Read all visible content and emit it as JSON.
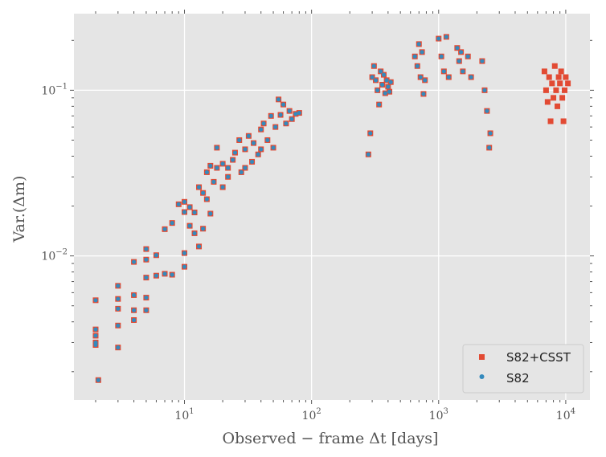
{
  "chart_data": {
    "type": "scatter",
    "xlabel": "Observed − frame Δt [days]",
    "ylabel": "Var.(Δm)",
    "xscale": "log",
    "yscale": "log",
    "xlim": [
      1.35,
      15500
    ],
    "ylim": [
      0.00135,
      0.29
    ],
    "x_ticks": [
      {
        "value": 10,
        "base": "10",
        "exp": "1"
      },
      {
        "value": 100,
        "base": "10",
        "exp": "2"
      },
      {
        "value": 1000,
        "base": "10",
        "exp": "3"
      },
      {
        "value": 10000,
        "base": "10",
        "exp": "4"
      }
    ],
    "y_ticks": [
      {
        "value": 0.01,
        "base": "10",
        "exp": "−2"
      },
      {
        "value": 0.1,
        "base": "10",
        "exp": "−1"
      }
    ],
    "grid": true,
    "legend_position": "bottom-right",
    "colors": {
      "background": "#e5e5e5",
      "grid": "#ffffff",
      "s82_csst": "#e24a33",
      "s82": "#348abd"
    },
    "series": [
      {
        "name": "S82+CSST",
        "marker": "square",
        "color": "#e24a33",
        "x": [
          2,
          2,
          2,
          2,
          2,
          2.1,
          3,
          3,
          3,
          3,
          3,
          4,
          4,
          4,
          4,
          5,
          5,
          5,
          5,
          5,
          6,
          6,
          7,
          7,
          8,
          8,
          9,
          10,
          10,
          10,
          10,
          11,
          11,
          12,
          12,
          13,
          13,
          14,
          14,
          15,
          15,
          16,
          16,
          17,
          18,
          18,
          20,
          20,
          22,
          22,
          24,
          25,
          27,
          28,
          30,
          30,
          32,
          34,
          35,
          38,
          40,
          40,
          42,
          45,
          48,
          50,
          52,
          55,
          57,
          60,
          63,
          67,
          70,
          75,
          80,
          280,
          290,
          300,
          310,
          320,
          330,
          340,
          350,
          360,
          370,
          380,
          390,
          400,
          410,
          420,
          650,
          680,
          700,
          720,
          740,
          760,
          780,
          1000,
          1050,
          1100,
          1150,
          1200,
          1400,
          1450,
          1500,
          1550,
          1700,
          1800,
          2200,
          2300,
          2400,
          2500,
          2550,
          6800,
          7000,
          7200,
          7400,
          7600,
          7800,
          8000,
          8200,
          8400,
          8600,
          8800,
          9000,
          9200,
          9400,
          9600,
          9800,
          10000,
          10400
        ],
        "y": [
          0.0054,
          0.0036,
          0.0033,
          0.003,
          0.0029,
          0.00178,
          0.0066,
          0.0055,
          0.0048,
          0.0038,
          0.0028,
          0.0092,
          0.0058,
          0.0047,
          0.0041,
          0.011,
          0.0095,
          0.0074,
          0.0056,
          0.0047,
          0.0101,
          0.0076,
          0.0145,
          0.0078,
          0.0158,
          0.0077,
          0.0205,
          0.0212,
          0.0184,
          0.0104,
          0.0086,
          0.0197,
          0.0152,
          0.0183,
          0.0137,
          0.026,
          0.0114,
          0.024,
          0.0146,
          0.032,
          0.022,
          0.035,
          0.018,
          0.028,
          0.045,
          0.034,
          0.036,
          0.026,
          0.034,
          0.03,
          0.038,
          0.042,
          0.05,
          0.032,
          0.044,
          0.034,
          0.053,
          0.037,
          0.048,
          0.041,
          0.058,
          0.044,
          0.063,
          0.05,
          0.07,
          0.045,
          0.06,
          0.088,
          0.071,
          0.082,
          0.063,
          0.075,
          0.067,
          0.072,
          0.073,
          0.041,
          0.055,
          0.12,
          0.14,
          0.115,
          0.1,
          0.082,
          0.13,
          0.108,
          0.124,
          0.096,
          0.115,
          0.105,
          0.098,
          0.112,
          0.16,
          0.14,
          0.19,
          0.12,
          0.17,
          0.095,
          0.115,
          0.205,
          0.16,
          0.13,
          0.21,
          0.12,
          0.18,
          0.15,
          0.17,
          0.13,
          0.16,
          0.12,
          0.15,
          0.1,
          0.075,
          0.045,
          0.055,
          0.13,
          0.1,
          0.085,
          0.12,
          0.065,
          0.11,
          0.09,
          0.14,
          0.1,
          0.08,
          0.12,
          0.11,
          0.13,
          0.09,
          0.065,
          0.1,
          0.12,
          0.11
        ]
      },
      {
        "name": "S82",
        "marker": "circle",
        "color": "#348abd",
        "x": [
          2,
          2,
          2,
          2,
          2,
          2.1,
          3,
          3,
          3,
          3,
          3,
          4,
          4,
          4,
          4,
          5,
          5,
          5,
          5,
          5,
          6,
          6,
          7,
          7,
          8,
          8,
          9,
          10,
          10,
          10,
          10,
          11,
          11,
          12,
          12,
          13,
          13,
          14,
          14,
          15,
          15,
          16,
          16,
          17,
          18,
          18,
          20,
          20,
          22,
          22,
          24,
          25,
          27,
          28,
          30,
          30,
          32,
          34,
          35,
          38,
          40,
          40,
          42,
          45,
          48,
          50,
          52,
          55,
          57,
          60,
          63,
          67,
          70,
          75,
          80,
          280,
          290,
          300,
          310,
          320,
          330,
          340,
          350,
          360,
          370,
          380,
          390,
          400,
          410,
          420,
          650,
          680,
          700,
          720,
          740,
          760,
          780,
          1000,
          1050,
          1100,
          1150,
          1200,
          1400,
          1450,
          1500,
          1550,
          1700,
          1800,
          2200,
          2300,
          2400,
          2500,
          2550
        ],
        "y": [
          0.0054,
          0.0036,
          0.0033,
          0.003,
          0.0029,
          0.00178,
          0.0066,
          0.0055,
          0.0048,
          0.0038,
          0.0028,
          0.0092,
          0.0058,
          0.0047,
          0.0041,
          0.011,
          0.0095,
          0.0074,
          0.0056,
          0.0047,
          0.0101,
          0.0076,
          0.0145,
          0.0078,
          0.0158,
          0.0077,
          0.0205,
          0.0212,
          0.0184,
          0.0104,
          0.0086,
          0.0197,
          0.0152,
          0.0183,
          0.0137,
          0.026,
          0.0114,
          0.024,
          0.0146,
          0.032,
          0.022,
          0.035,
          0.018,
          0.028,
          0.045,
          0.034,
          0.036,
          0.026,
          0.034,
          0.03,
          0.038,
          0.042,
          0.05,
          0.032,
          0.044,
          0.034,
          0.053,
          0.037,
          0.048,
          0.041,
          0.058,
          0.044,
          0.063,
          0.05,
          0.07,
          0.045,
          0.06,
          0.088,
          0.071,
          0.082,
          0.063,
          0.075,
          0.067,
          0.072,
          0.073,
          0.041,
          0.055,
          0.12,
          0.14,
          0.115,
          0.1,
          0.082,
          0.13,
          0.108,
          0.124,
          0.096,
          0.115,
          0.105,
          0.098,
          0.112,
          0.16,
          0.14,
          0.19,
          0.12,
          0.17,
          0.095,
          0.115,
          0.205,
          0.16,
          0.13,
          0.21,
          0.12,
          0.18,
          0.15,
          0.17,
          0.13,
          0.16,
          0.12,
          0.15,
          0.1,
          0.075,
          0.045,
          0.055
        ]
      }
    ]
  }
}
